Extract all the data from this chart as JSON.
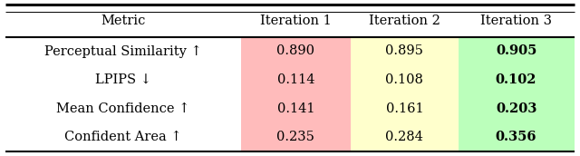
{
  "col_headers": [
    "Metric",
    "Iteration 1",
    "Iteration 2",
    "Iteration 3"
  ],
  "rows": [
    [
      "Perceptual Similarity ↑",
      "0.890",
      "0.895",
      "0.905"
    ],
    [
      "LPIPS ↓",
      "0.114",
      "0.108",
      "0.102"
    ],
    [
      "Mean Confidence ↑",
      "0.141",
      "0.161",
      "0.203"
    ],
    [
      "Confident Area ↑",
      "0.235",
      "0.284",
      "0.356"
    ]
  ],
  "cell_colors": {
    "iter1": "#FFBBBB",
    "iter2": "#FFFFCC",
    "iter3": "#BBFFBB"
  },
  "bold_col": 3,
  "figsize": [
    6.4,
    1.72
  ],
  "dpi": 100,
  "background": "#FFFFFF",
  "font_family": "serif",
  "header_fontsize": 10.5,
  "cell_fontsize": 10.5
}
